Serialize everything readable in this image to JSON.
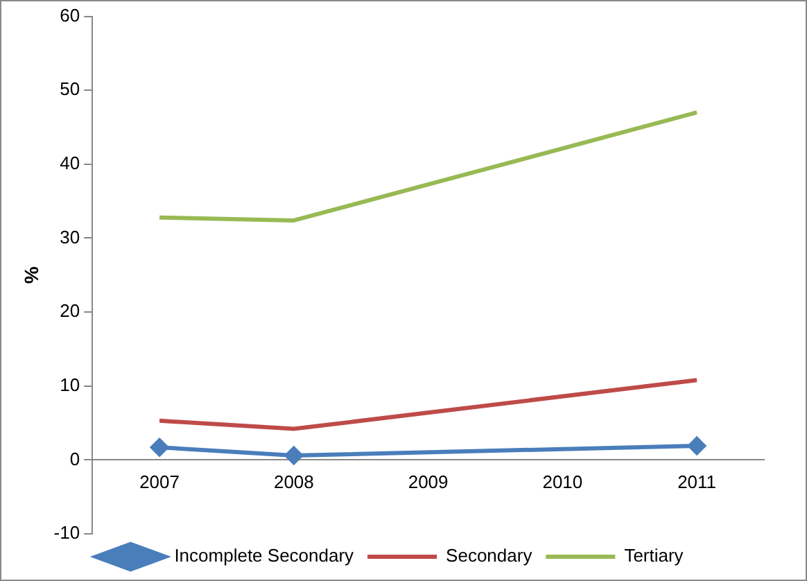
{
  "chart_data": {
    "type": "line",
    "ylabel": "%",
    "categories": [
      "2007",
      "2008",
      "2009",
      "2010",
      "2011"
    ],
    "series": [
      {
        "name": "Incomplete Secondary",
        "color": "#4a7ebb",
        "values": [
          1.7,
          0.6,
          null,
          null,
          1.9
        ],
        "marker": "diamond"
      },
      {
        "name": "Secondary",
        "color": "#be4b48",
        "values": [
          5.3,
          4.2,
          null,
          null,
          10.8
        ],
        "marker": "none"
      },
      {
        "name": "Tertiary",
        "color": "#98b954",
        "values": [
          32.8,
          32.4,
          null,
          null,
          47
        ],
        "marker": "none"
      }
    ],
    "ylim": [
      -10,
      60
    ],
    "yticks": [
      -10,
      0,
      10,
      20,
      30,
      40,
      50,
      60
    ],
    "grid": false,
    "legend": "bottom"
  }
}
